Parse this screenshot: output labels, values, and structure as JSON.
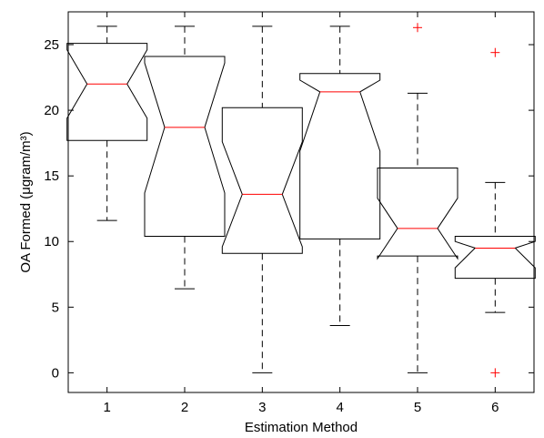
{
  "chart_data": {
    "type": "boxplot",
    "notched": true,
    "title": "",
    "xlabel": "Estimation Method",
    "ylabel": "OA Formed (μgram/m³)",
    "ylim": [
      -1.5,
      27.5
    ],
    "yticks": [
      0,
      5,
      10,
      15,
      20,
      25
    ],
    "categories": [
      "1",
      "2",
      "3",
      "4",
      "5",
      "6"
    ],
    "boxes": [
      {
        "category": "1",
        "whisker_low": 11.6,
        "q1": 17.7,
        "notch_low": 19.4,
        "median": 22.0,
        "notch_high": 24.6,
        "q3": 25.1,
        "whisker_high": 26.4,
        "outliers": []
      },
      {
        "category": "2",
        "whisker_low": 6.4,
        "q1": 10.4,
        "notch_low": 13.7,
        "median": 18.7,
        "notch_high": 23.6,
        "q3": 24.1,
        "whisker_high": 26.4,
        "outliers": []
      },
      {
        "category": "3",
        "whisker_low": 0.0,
        "q1": 9.1,
        "notch_low": 9.6,
        "median": 13.6,
        "notch_high": 17.6,
        "q3": 20.2,
        "whisker_high": 26.4,
        "outliers": []
      },
      {
        "category": "4",
        "whisker_low": 3.6,
        "q1": 10.2,
        "notch_low": 16.9,
        "median": 21.4,
        "notch_high": 22.3,
        "q3": 22.8,
        "whisker_high": 26.4,
        "outliers": []
      },
      {
        "category": "5",
        "whisker_low": 0.0,
        "q1": 8.9,
        "notch_low": 8.7,
        "median": 11.0,
        "notch_high": 13.3,
        "q3": 15.6,
        "whisker_high": 21.3,
        "outliers": [
          26.3
        ]
      },
      {
        "category": "6",
        "whisker_low": 4.6,
        "q1": 7.2,
        "notch_low": 8.0,
        "median": 9.5,
        "notch_high": 10.0,
        "q3": 10.4,
        "whisker_high": 14.5,
        "outliers": [
          24.4,
          0.0
        ]
      }
    ],
    "colors": {
      "box": "#000000",
      "median": "#ff0000",
      "outlier": "#ff0000"
    },
    "grid": false,
    "legend": "none"
  }
}
